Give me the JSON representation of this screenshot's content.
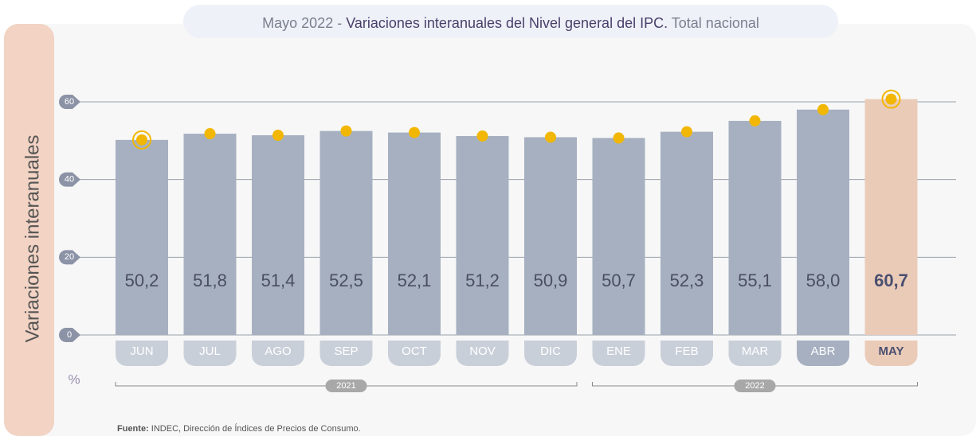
{
  "chart_data": {
    "type": "bar",
    "title_prefix": "Mayo 2022 - ",
    "title": "Variaciones interanuales del Nivel general del IPC.",
    "title_suffix": " Total nacional",
    "y_label": "Variaciones interanuales",
    "unit": "%",
    "categories": [
      "JUN",
      "JUL",
      "AGO",
      "SEP",
      "OCT",
      "NOV",
      "DIC",
      "ENE",
      "FEB",
      "MAR",
      "ABR",
      "MAY"
    ],
    "values": [
      50.2,
      51.8,
      51.4,
      52.5,
      52.1,
      51.2,
      50.9,
      50.7,
      52.3,
      55.1,
      58.0,
      60.7
    ],
    "value_labels": [
      "50,2",
      "51,8",
      "51,4",
      "52,5",
      "52,1",
      "51,2",
      "50,9",
      "50,7",
      "52,3",
      "55,1",
      "58,0",
      "60,7"
    ],
    "color": "#a6b0c0",
    "highlight_color": "#eacbb8",
    "marker_color": "#f2b705",
    "ylim": [
      0,
      60
    ],
    "yticks": [
      0,
      20,
      40,
      60
    ],
    "grid": true,
    "groups": [
      {
        "label": "2021",
        "start": 0,
        "end": 6
      },
      {
        "label": "2022",
        "start": 7,
        "end": 11
      }
    ],
    "source_label": "Fuente:",
    "source": " INDEC, Dirección de Índices de Precios de Consumo."
  }
}
